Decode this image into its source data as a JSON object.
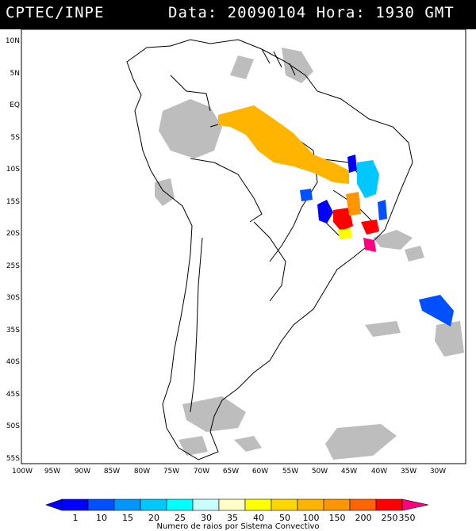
{
  "header": {
    "source": "CPTEC/INPE",
    "datetime": "Data: 20090104 Hora: 1930 GMT"
  },
  "map": {
    "lat_labels": [
      "10N",
      "5N",
      "EQ",
      "5S",
      "10S",
      "15S",
      "20S",
      "25S",
      "30S",
      "35S",
      "40S",
      "45S",
      "50S",
      "55S"
    ],
    "lon_labels": [
      "100W",
      "95W",
      "90W",
      "85W",
      "80W",
      "75W",
      "70W",
      "65W",
      "60W",
      "55W",
      "50W",
      "45W",
      "40W",
      "35W",
      "30W"
    ],
    "colors": {
      "land_outline": "#000000",
      "cloud": "#bdbdbd",
      "background": "#ffffff"
    }
  },
  "colorbar": {
    "caption": "Numero de raios por Sistema Convectivo",
    "labels": [
      "1",
      "10",
      "15",
      "20",
      "25",
      "30",
      "35",
      "40",
      "50",
      "100",
      "150",
      "200",
      "250",
      "350"
    ],
    "colors": [
      "#0000ff",
      "#0050ff",
      "#0096ff",
      "#00c8ff",
      "#00ffff",
      "#c8ffff",
      "#ffffc8",
      "#ffff00",
      "#ffd700",
      "#ffb400",
      "#ff9600",
      "#ff6400",
      "#ff3200",
      "#ff0000",
      "#ff0080"
    ]
  },
  "lightning_systems": [
    {
      "name": "amazon-band",
      "color": "#ffb400"
    },
    {
      "name": "bahia-cyan",
      "color": "#00c8ff"
    },
    {
      "name": "goias-blue",
      "color": "#0000ff"
    },
    {
      "name": "minas-red",
      "color": "#ff0000"
    },
    {
      "name": "minas-orange",
      "color": "#ff9600"
    },
    {
      "name": "rio-magenta",
      "color": "#ff0080"
    },
    {
      "name": "atlantic-blue",
      "color": "#0050ff"
    },
    {
      "name": "ne-blue",
      "color": "#0000ff"
    }
  ]
}
